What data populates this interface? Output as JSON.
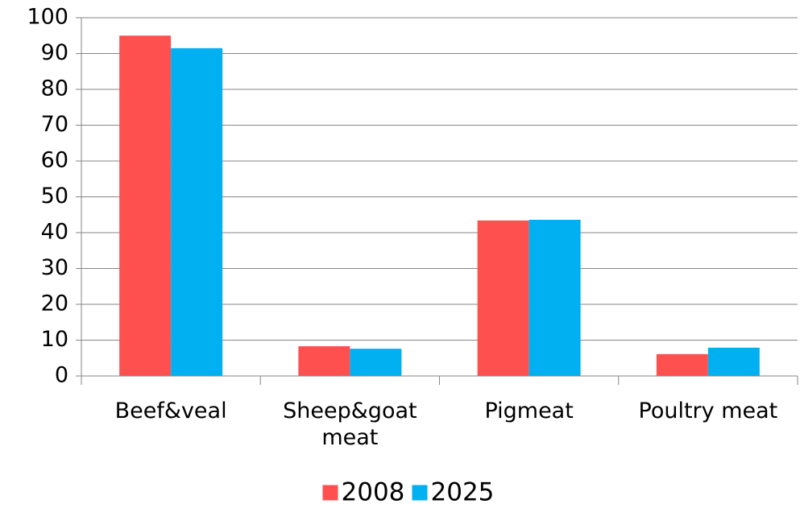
{
  "chart_data": {
    "type": "bar",
    "categories": [
      "Beef&veal",
      "Sheep&goat meat",
      "Pigmeat",
      "Poultry meat"
    ],
    "series": [
      {
        "name": "2008",
        "color": "#ff5050",
        "values": [
          95,
          8.3,
          43.4,
          6.1
        ]
      },
      {
        "name": "2025",
        "color": "#00b0f0",
        "values": [
          91.5,
          7.6,
          43.6,
          7.9
        ]
      }
    ],
    "ylim": [
      0,
      100
    ],
    "yticks": [
      0,
      10,
      20,
      30,
      40,
      50,
      60,
      70,
      80,
      90,
      100
    ],
    "grid": true,
    "legend": "bottom"
  }
}
